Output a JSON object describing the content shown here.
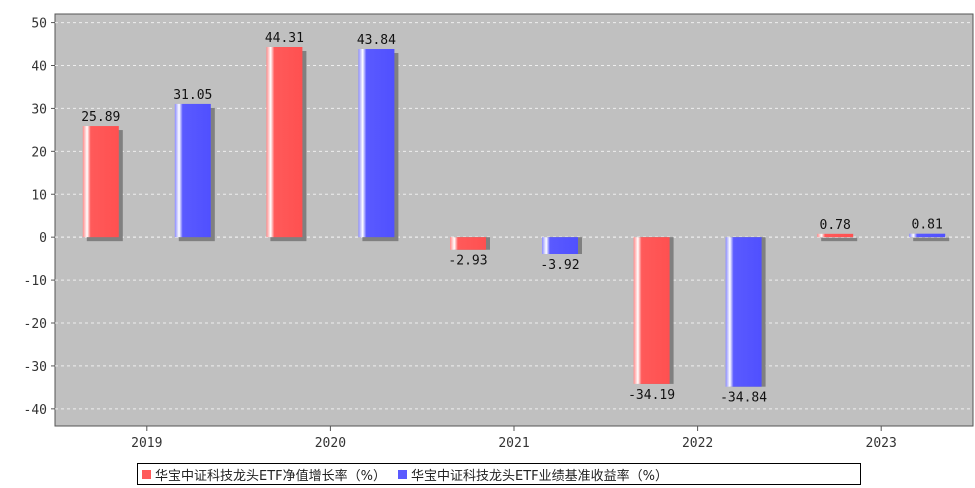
{
  "chart_data": {
    "type": "bar",
    "categories": [
      "2019",
      "2020",
      "2021",
      "2022",
      "2023"
    ],
    "series": [
      {
        "name": "华宝中证科技龙头ETF净值增长率（%）",
        "color": "#ff5a5a",
        "values": [
          25.89,
          44.31,
          -2.93,
          -34.19,
          0.78
        ]
      },
      {
        "name": "华宝中证科技龙头ETF业绩基准收益率（%）",
        "color": "#5a5aff",
        "values": [
          31.05,
          43.84,
          -3.92,
          -34.84,
          0.81
        ]
      }
    ],
    "yticks": [
      50,
      40,
      30,
      20,
      10,
      0,
      -10,
      -20,
      -30,
      -40
    ],
    "ylim": [
      -44,
      52
    ],
    "grid": true,
    "legend_position": "bottom",
    "plot_background": "#c0c0c0"
  }
}
